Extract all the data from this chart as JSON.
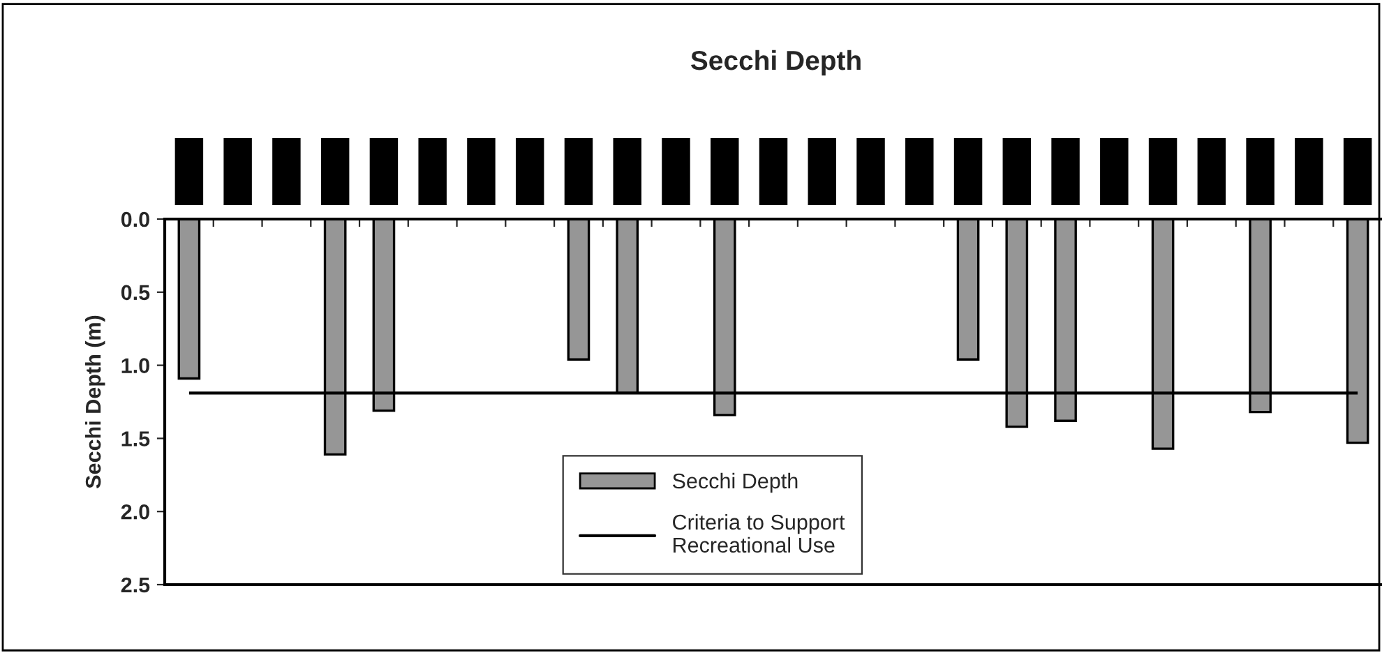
{
  "chart_data": {
    "type": "bar",
    "title": "Secchi Depth",
    "ylabel": "Secchi Depth (m)",
    "categories": [
      null,
      null,
      null,
      null,
      null,
      null,
      null,
      null,
      null,
      null,
      null,
      null,
      null,
      null,
      null,
      null,
      null,
      null,
      null,
      null,
      null,
      null,
      null,
      null,
      null
    ],
    "series": [
      {
        "name": "Secchi Depth",
        "color": "#969696",
        "values": [
          1.09,
          null,
          null,
          1.61,
          1.31,
          null,
          null,
          null,
          0.96,
          1.19,
          null,
          1.34,
          null,
          null,
          null,
          null,
          0.96,
          1.42,
          1.38,
          null,
          1.57,
          null,
          1.32,
          null,
          1.53
        ]
      }
    ],
    "ref_lines": [
      {
        "axis": "y",
        "value": 1.19,
        "label": "Criteria to Support\nRecreational Use",
        "color": "#000000",
        "line_style": "solid"
      }
    ],
    "ylim": [
      2.5,
      0
    ],
    "yticks": [
      {
        "value": 0,
        "label": "0.0"
      },
      {
        "value": 0.5,
        "label": "0.5"
      },
      {
        "value": 1,
        "label": "1.0"
      },
      {
        "value": 1.5,
        "label": "1.5"
      },
      {
        "value": 2,
        "label": "2.0"
      },
      {
        "value": 2.5,
        "label": "2.5"
      }
    ],
    "grid": false,
    "legend": "bottom"
  }
}
